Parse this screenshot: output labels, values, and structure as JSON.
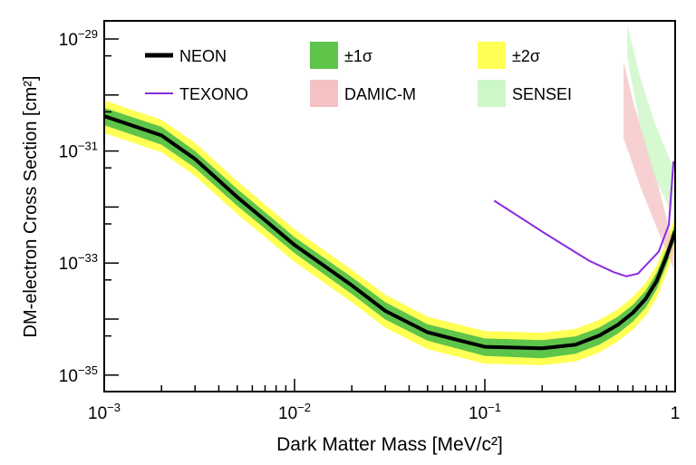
{
  "chart_data": {
    "type": "line",
    "xlabel": "Dark Matter Mass [MeV/c²]",
    "ylabel": "DM-electron Cross Section [cm²]",
    "xscale": "log",
    "yscale": "log",
    "xlim": [
      0.001,
      1
    ],
    "ylim": [
      5e-36,
      2e-29
    ],
    "x_ticks": [
      {
        "value": 0.001,
        "base": "10",
        "exp": "−3"
      },
      {
        "value": 0.01,
        "base": "10",
        "exp": "−2"
      },
      {
        "value": 0.1,
        "base": "10",
        "exp": "−1"
      },
      {
        "value": 1,
        "base": "1",
        "exp": ""
      }
    ],
    "y_ticks": [
      {
        "value": 1e-29,
        "base": "10",
        "exp": "−29"
      },
      {
        "value": 1e-31,
        "base": "10",
        "exp": "−31"
      },
      {
        "value": 1e-33,
        "base": "10",
        "exp": "−33"
      },
      {
        "value": 1e-35,
        "base": "10",
        "exp": "−35"
      }
    ],
    "grid": false,
    "legend_placement": "top",
    "legend": [
      {
        "label": "NEON",
        "kind": "line",
        "color": "#000000"
      },
      {
        "label": "±1σ",
        "kind": "box",
        "color": "#5ec44a"
      },
      {
        "label": "±2σ",
        "kind": "box",
        "color": "#ffff55"
      },
      {
        "label": "TEXONO",
        "kind": "line",
        "color": "#8a2be2"
      },
      {
        "label": "DAMIC-M",
        "kind": "box",
        "color": "#f4c2c2"
      },
      {
        "label": "SENSEI",
        "kind": "box",
        "color": "#ccf7c6"
      }
    ],
    "neon": {
      "x": [
        0.001,
        0.002,
        0.003,
        0.005,
        0.007,
        0.01,
        0.02,
        0.03,
        0.05,
        0.1,
        0.2,
        0.3,
        0.4,
        0.5,
        0.6,
        0.7,
        0.8,
        0.9,
        1.0
      ],
      "y": [
        4.2e-31,
        1.9e-31,
        7.2e-32,
        1.5e-32,
        5.8e-33,
        2.1e-33,
        4e-34,
        1.4e-34,
        5.8e-35,
        3.2e-35,
        3e-35,
        3.5e-35,
        5.1e-35,
        7.9e-35,
        1.3e-34,
        2.3e-34,
        4.8e-34,
        1.3e-33,
        3.7e-33
      ],
      "sigma1_low": [
        2.9e-31,
        1.3e-31,
        5e-32,
        1.05e-32,
        4.1e-33,
        1.5e-33,
        2.8e-34,
        9.8e-35,
        4.1e-35,
        2.2e-35,
        2e-35,
        2.4e-35,
        3.5e-35,
        5.5e-35,
        9e-35,
        1.6e-34,
        3.4e-34,
        9.1e-34,
        2.6e-33
      ],
      "sigma1_high": [
        5.9e-31,
        2.7e-31,
        1e-31,
        2.1e-32,
        8.1e-33,
        2.9e-33,
        5.6e-34,
        2e-34,
        8.1e-35,
        4.5e-35,
        4.2e-35,
        4.9e-35,
        7.1e-35,
        1.1e-34,
        1.8e-34,
        3.2e-34,
        6.7e-34,
        1.8e-33,
        5.2e-33
      ],
      "sigma2_low": [
        2.1e-31,
        9.5e-32,
        3.6e-32,
        7.5e-33,
        2.9e-33,
        1.05e-33,
        2e-34,
        7e-35,
        2.9e-35,
        1.6e-35,
        1.5e-35,
        1.75e-35,
        2.55e-35,
        4e-35,
        6.5e-35,
        1.15e-34,
        2.4e-34,
        6.5e-34,
        1.85e-33
      ],
      "sigma2_high": [
        8e-31,
        3.6e-31,
        1.4e-31,
        2.9e-32,
        1.1e-32,
        4e-33,
        7.6e-34,
        2.7e-34,
        1.1e-34,
        6.1e-35,
        5.7e-35,
        6.7e-35,
        9.7e-35,
        1.5e-34,
        2.5e-34,
        4.4e-34,
        9.1e-34,
        2.5e-33,
        7e-33
      ]
    },
    "texono": {
      "x": [
        0.112,
        0.204,
        0.353,
        0.475,
        0.553,
        0.638,
        0.82,
        0.926,
        0.98
      ],
      "y": [
        1.3e-32,
        3.5e-33,
        1.1e-33,
        6.9e-34,
        5.8e-34,
        6.5e-34,
        1.6e-33,
        4.8e-33,
        6.6e-32
      ]
    },
    "damic_m": {
      "upper_x": [
        0.535,
        0.61,
        0.736,
        0.85,
        0.98
      ],
      "upper_y": [
        4e-30,
        6.3e-31,
        8.7e-32,
        1.4e-32,
        1.9e-33
      ],
      "lower_x": [
        0.535,
        0.66,
        0.786,
        0.916,
        0.98
      ],
      "lower_y": [
        1.7e-31,
        2.2e-32,
        5e-33,
        1.4e-33,
        7.9e-34
      ]
    },
    "sensei": {
      "upper_x": [
        0.56,
        0.66,
        0.786,
        0.97
      ],
      "upper_y": [
        1.8e-29,
        1.9e-30,
        3e-31,
        5.4e-32
      ],
      "lower_x": [
        0.56,
        0.66,
        0.786,
        0.97
      ],
      "lower_y": [
        4.8e-30,
        2.4e-31,
        3.2e-32,
        7.2e-33
      ]
    }
  }
}
